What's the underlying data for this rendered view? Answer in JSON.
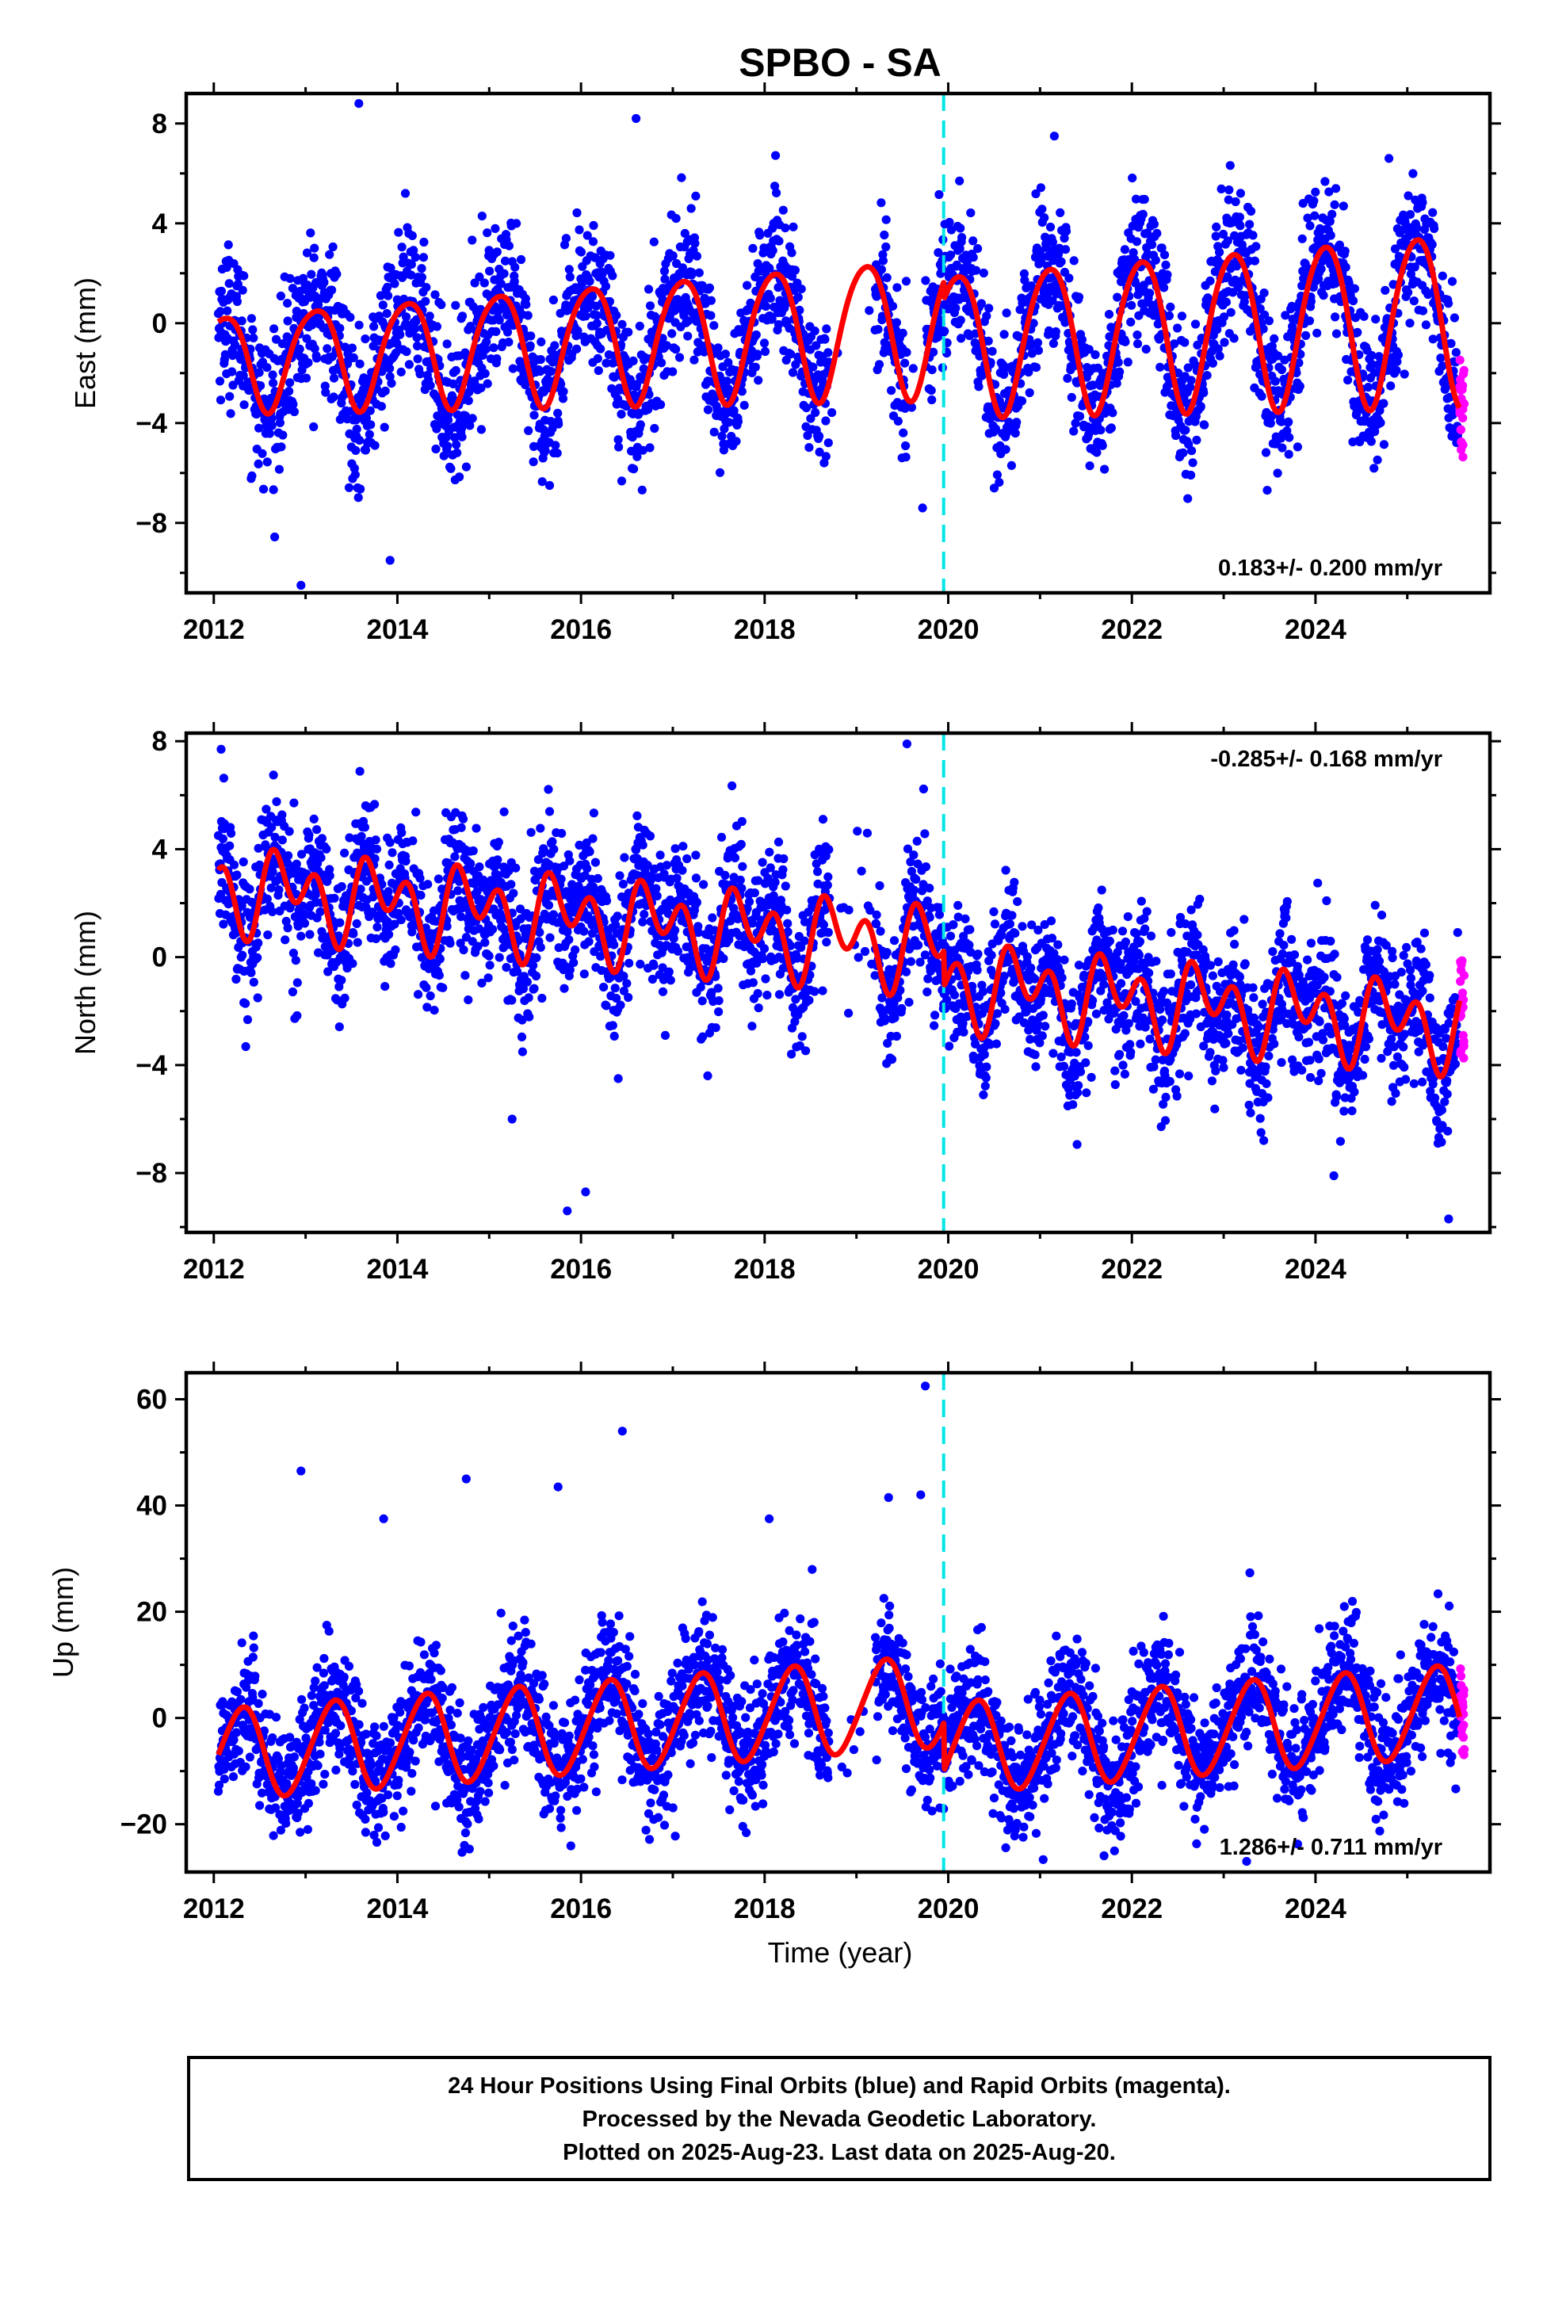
{
  "title": "SPBO - SA",
  "colors": {
    "final_orbits": "#0000ff",
    "rapid_orbits": "#ff00ff",
    "fit": "#ff0000",
    "event_line": "#00e5e5",
    "frame": "#000000"
  },
  "event_year": 2019.95,
  "chart_data": [
    {
      "type": "scatter",
      "ylabel": "East (mm)",
      "xlim": [
        2011.7,
        2025.9
      ],
      "ylim": [
        -10.8,
        9.2
      ],
      "xticks": [
        2012,
        2014,
        2016,
        2018,
        2020,
        2022,
        2024
      ],
      "yticks": [
        -8,
        -4,
        0,
        4,
        8
      ],
      "grid": false,
      "rate_text": "0.183+/- 0.200 mm/yr",
      "rate_position": "bottom-right",
      "fit": {
        "offset": -0.2,
        "slope": 0.183,
        "t0": 2019,
        "annual_amp": 1.9,
        "annual_phase": 0.85,
        "semiannual_amp": 0.3,
        "semiannual_phase": 0.2,
        "amp_growth_per_yr": 0.06,
        "steps": [
          {
            "year": 2019.95,
            "delta": -0.7
          }
        ],
        "start_value": -3.0
      },
      "scatter_noise": 1.5,
      "outliers": [
        [
          2013.58,
          8.8
        ],
        [
          2012.95,
          -10.5
        ],
        [
          2013.92,
          -9.5
        ],
        [
          2016.6,
          8.2
        ],
        [
          2019.72,
          -7.4
        ],
        [
          2024.8,
          6.6
        ]
      ],
      "gaps": [
        [
          2018.7,
          2019.2
        ],
        [
          2019.55,
          2019.75
        ]
      ],
      "series": [
        {
          "name": "Final Orbits",
          "color_ref": "final_orbits"
        },
        {
          "name": "Rapid Orbits",
          "color_ref": "rapid_orbits"
        }
      ]
    },
    {
      "type": "scatter",
      "ylabel": "North (mm)",
      "xlim": [
        2011.7,
        2025.9
      ],
      "ylim": [
        -10.2,
        8.3
      ],
      "xticks": [
        2012,
        2014,
        2016,
        2018,
        2020,
        2022,
        2024
      ],
      "yticks": [
        -8,
        -4,
        0,
        4,
        8
      ],
      "grid": false,
      "rate_text": "-0.285+/- 0.168 mm/yr",
      "rate_position": "top-right",
      "fit": {
        "offset": 0.6,
        "slope": -0.285,
        "t0": 2019,
        "annual_amp": 0.9,
        "annual_phase": 0.55,
        "semiannual_amp": 1.1,
        "semiannual_phase": 0.0,
        "amp_growth_per_yr": 0.0,
        "steps": [
          {
            "year": 2019.95,
            "delta": -1.3
          }
        ],
        "start_value": 2.7
      },
      "scatter_noise": 1.3,
      "outliers": [
        [
          2012.08,
          7.7
        ],
        [
          2019.55,
          7.9
        ],
        [
          2015.85,
          -9.4
        ],
        [
          2016.05,
          -8.7
        ],
        [
          2025.45,
          -9.7
        ],
        [
          2024.2,
          -8.1
        ],
        [
          2015.25,
          -6.0
        ]
      ],
      "gaps": [
        [
          2018.7,
          2019.2
        ]
      ],
      "series": [
        {
          "name": "Final Orbits",
          "color_ref": "final_orbits"
        },
        {
          "name": "Rapid Orbits",
          "color_ref": "rapid_orbits"
        }
      ]
    },
    {
      "type": "scatter",
      "ylabel": "Up (mm)",
      "xlabel": "Time (year)",
      "xlim": [
        2011.7,
        2025.9
      ],
      "ylim": [
        -29,
        65
      ],
      "xticks": [
        2012,
        2014,
        2016,
        2018,
        2020,
        2022,
        2024
      ],
      "yticks": [
        -20,
        0,
        20,
        40,
        60
      ],
      "grid": false,
      "rate_text": "1.286+/- 0.711 mm/yr",
      "rate_position": "bottom-right",
      "fit": {
        "offset": 2.0,
        "slope": 1.286,
        "t0": 2019,
        "annual_amp": 8.5,
        "annual_phase": 0.05,
        "semiannual_amp": 0.8,
        "semiannual_phase": 0.3,
        "amp_growth_per_yr": 0.0,
        "steps": [
          {
            "year": 2019.95,
            "delta": -9.0
          }
        ],
        "start_value": -1.5
      },
      "scatter_noise": 6.0,
      "outliers": [
        [
          2019.75,
          62.5
        ],
        [
          2016.45,
          54
        ],
        [
          2012.95,
          46.5
        ],
        [
          2014.75,
          45
        ],
        [
          2015.75,
          43.5
        ],
        [
          2018.05,
          37.5
        ],
        [
          2013.85,
          37.5
        ],
        [
          2019.35,
          41.5
        ],
        [
          2019.7,
          42
        ],
        [
          2023.25,
          -27
        ]
      ],
      "gaps": [
        [
          2018.7,
          2019.2
        ]
      ],
      "series": [
        {
          "name": "Final Orbits",
          "color_ref": "final_orbits"
        },
        {
          "name": "Rapid Orbits",
          "color_ref": "rapid_orbits"
        }
      ]
    }
  ],
  "footer": {
    "line1": "24 Hour Positions Using Final Orbits (blue) and Rapid Orbits (magenta).",
    "line2": "Processed by the Nevada Geodetic Laboratory.",
    "line3": "Plotted on 2025-Aug-23. Last data on 2025-Aug-20."
  }
}
